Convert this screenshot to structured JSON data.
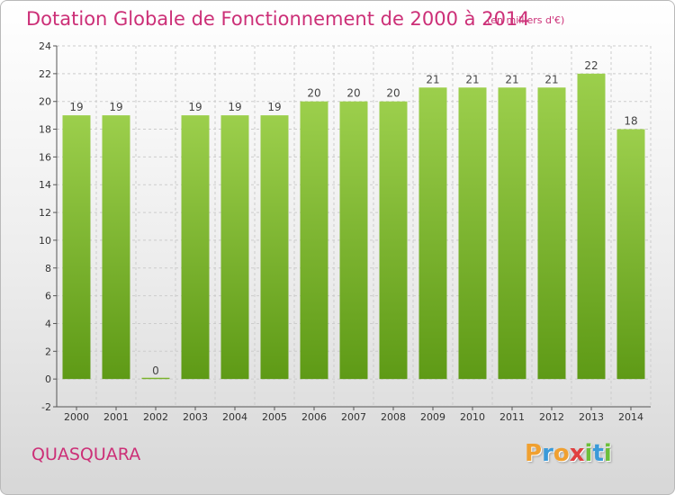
{
  "header": {
    "title": "Dotation Globale de Fonctionnement de 2000 à 2014",
    "unit": "(en milliers d'€)"
  },
  "footer": {
    "commune": "QUASQUARA",
    "logo_letters": [
      "P",
      "r",
      "o",
      "x",
      "i",
      "t",
      "i"
    ]
  },
  "colors": {
    "title": "#cc2f77",
    "bar_light": "#9ccf4c",
    "bar_dark": "#5e9a16",
    "logo": [
      "#f0a030",
      "#3a9ad9",
      "#f0a030",
      "#e04040",
      "#6cbf3a",
      "#3a9ad9",
      "#6cbf3a"
    ]
  },
  "chart_data": {
    "type": "bar",
    "title": "Dotation Globale de Fonctionnement de 2000 à 2014",
    "xlabel": "",
    "ylabel": "",
    "categories": [
      "2000",
      "2001",
      "2002",
      "2003",
      "2004",
      "2005",
      "2006",
      "2007",
      "2008",
      "2009",
      "2010",
      "2011",
      "2012",
      "2013",
      "2014"
    ],
    "values": [
      19,
      19,
      0,
      19,
      19,
      19,
      20,
      20,
      20,
      21,
      21,
      21,
      21,
      22,
      18
    ],
    "ylim": [
      -2,
      24
    ],
    "yticks": [
      -2,
      0,
      2,
      4,
      6,
      8,
      10,
      12,
      14,
      16,
      18,
      20,
      22,
      24
    ],
    "grid": true,
    "legend": "none"
  }
}
